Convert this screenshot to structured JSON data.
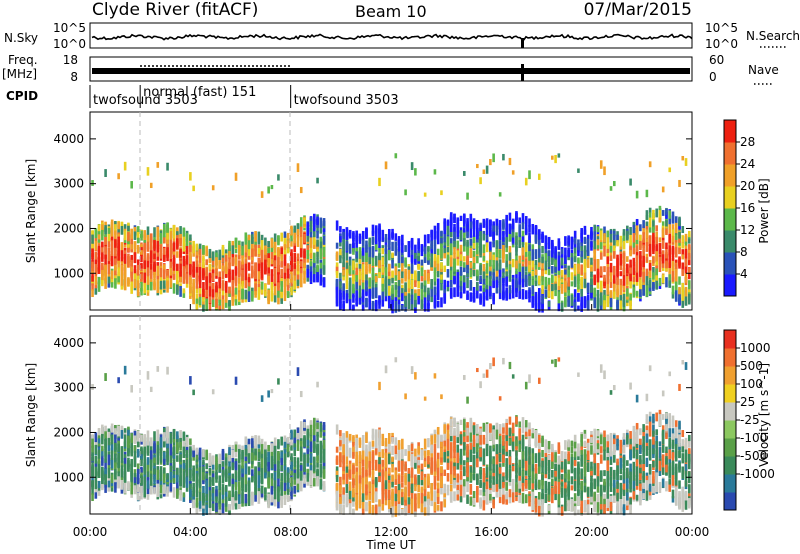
{
  "header": {
    "station": "Clyde River (fitACF)",
    "beam": "Beam 10",
    "date": "07/Mar/2015"
  },
  "noise_panel": {
    "left_label": "N.Sky",
    "right_label": "N.Search",
    "left_ticks": [
      "10^5",
      "10^0"
    ],
    "right_ticks": [
      "10^5",
      "10^0"
    ]
  },
  "freq_panel": {
    "left_label": "Freq.",
    "left_unit": "[MHz]",
    "left_ticks": [
      "18",
      "8"
    ],
    "right_label": "Nave",
    "right_ticks": [
      "60",
      "0"
    ]
  },
  "cpid": {
    "label": "CPID",
    "segments": [
      {
        "name": "twofsound 3503",
        "start_hour": 0.0
      },
      {
        "name": "normal (fast) 151",
        "start_hour": 2.0
      },
      {
        "name": "twofsound 3503",
        "start_hour": 8.0
      }
    ]
  },
  "x_axis": {
    "title": "Time UT",
    "ticks": [
      "00:00",
      "04:00",
      "08:00",
      "12:00",
      "16:00",
      "20:00",
      "00:00"
    ],
    "range_hours": [
      0,
      24
    ]
  },
  "y_axis": {
    "title": "Slant Range [km]",
    "ticks": [
      "1000",
      "2000",
      "3000",
      "4000"
    ],
    "range_km": [
      180,
      4600
    ]
  },
  "power_colorbar": {
    "title": "Power [dB]",
    "labels": [
      "4",
      "8",
      "12",
      "16",
      "20",
      "24",
      "28"
    ],
    "colors": [
      "#1a1aff",
      "#2a52b8",
      "#3a8a6a",
      "#5cb84a",
      "#e8d020",
      "#f0a028",
      "#f07030",
      "#ee2010"
    ]
  },
  "velocity_colorbar": {
    "title": "Velocity [m s^-1]",
    "labels": [
      "1000",
      "500",
      "100",
      "25",
      "-25",
      "-100",
      "-500",
      "-1000"
    ],
    "colors": [
      "#2a4ab0",
      "#2a7a9a",
      "#3a8a5a",
      "#5aa048",
      "#8cc860",
      "#c8c8c0",
      "#f0d020",
      "#f0a030",
      "#f07030",
      "#e83020"
    ]
  },
  "chart_data": {
    "type": "heatmap",
    "title": "Clyde River (fitACF) Beam 10 07/Mar/2015",
    "xlabel": "Time UT",
    "ylabel": "Slant Range [km]",
    "xlim": [
      0,
      24
    ],
    "ylim": [
      180,
      4600
    ],
    "panels": [
      {
        "name": "Power [dB]",
        "clim": [
          0,
          32
        ]
      },
      {
        "name": "Velocity [m s^-1]",
        "clim": [
          -1000,
          1000
        ]
      }
    ],
    "noise_series": [
      {
        "name": "N.Sky",
        "shown_as": "solid"
      },
      {
        "name": "N.Search",
        "shown_as": "dotted"
      }
    ],
    "freq_series": [
      {
        "name": "Freq.",
        "unit": "MHz",
        "ylim": [
          8,
          18
        ]
      },
      {
        "name": "Nave",
        "ylim": [
          0,
          60
        ]
      }
    ]
  }
}
